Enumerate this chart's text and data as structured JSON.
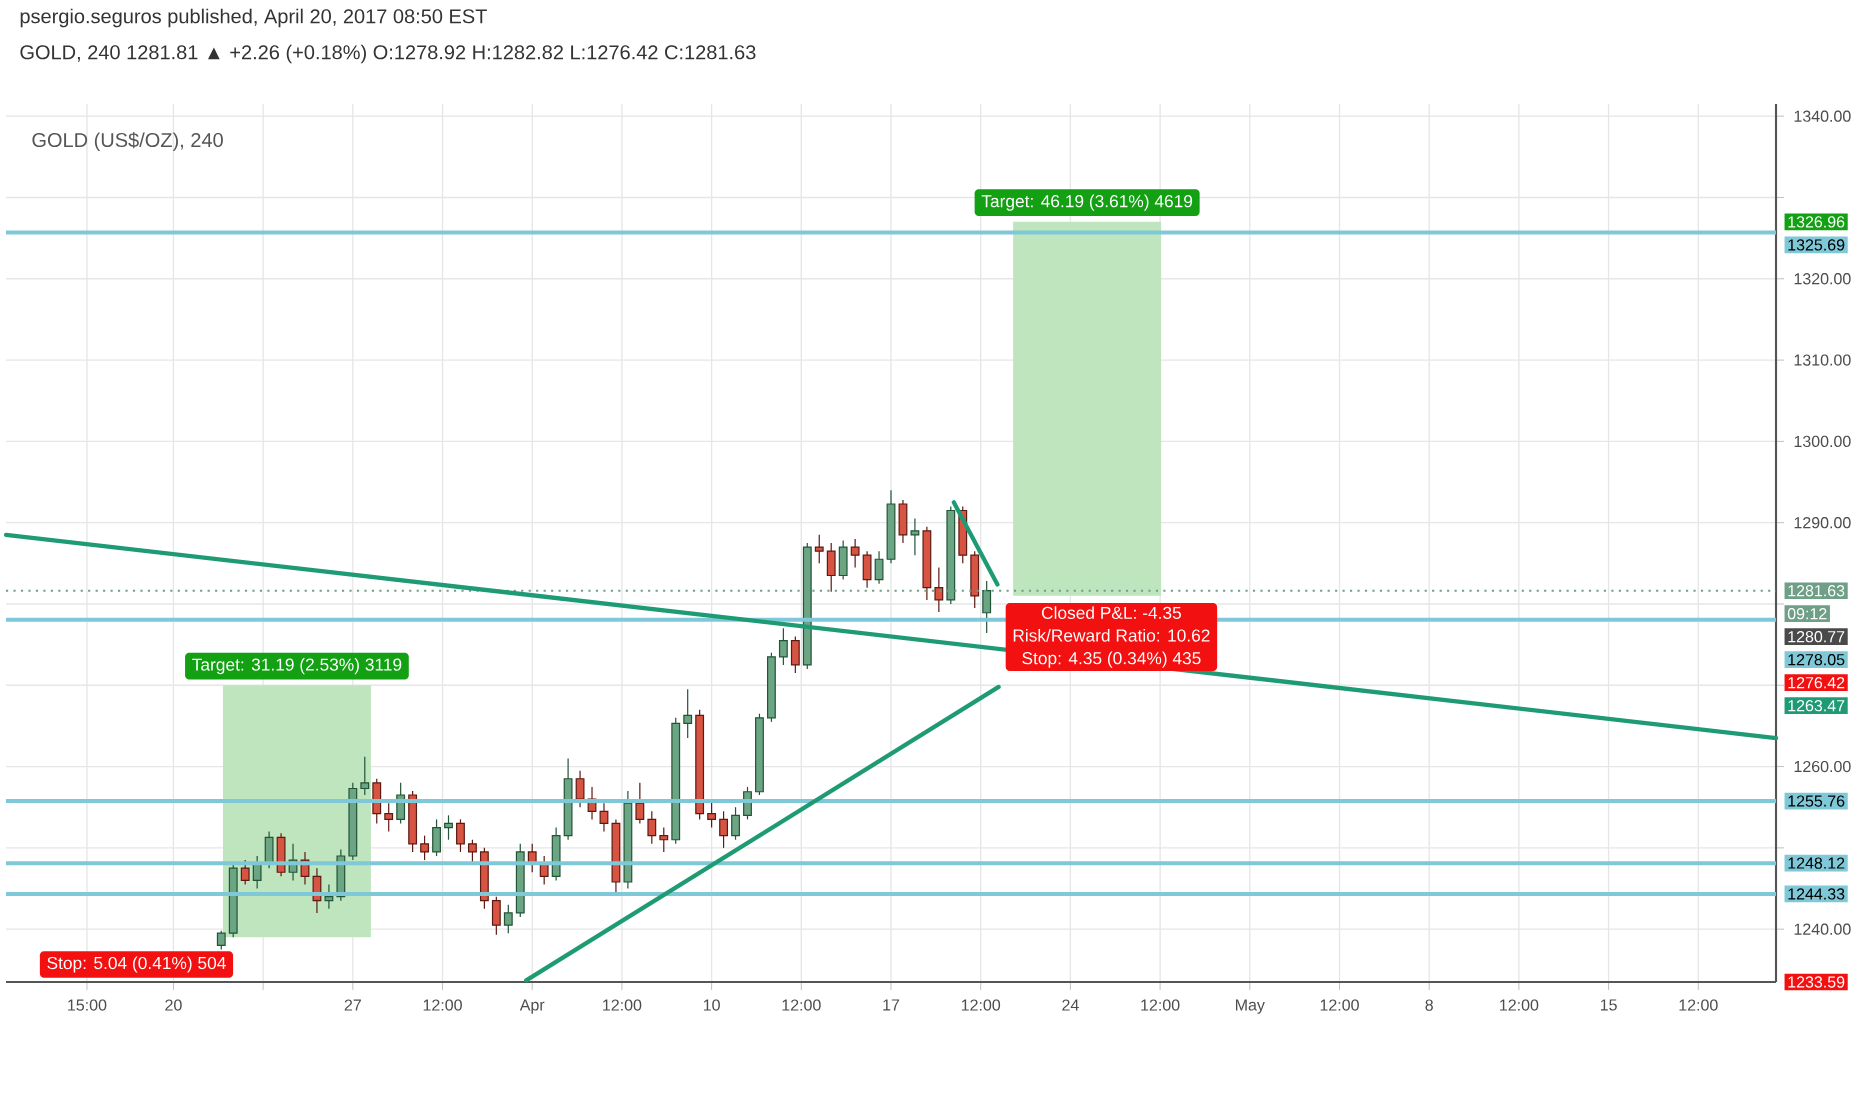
{
  "chart_data": {
    "type": "candlestick",
    "title": "GOLD (US$/OZ), 240",
    "subtitle": "GOLD, 240 1281.81 ▲ +2.26 (+0.18%) O:1278.92 H:1282.82 L:1276.42 C:1281.63",
    "xlim": [
      "2017-03-13T11:12",
      "2017-05-21T12:48"
    ],
    "ylim": [
      1233.5,
      1341.5
    ],
    "xticks": [
      {
        "value": "2017-03-16T15:00",
        "label": "15:00"
      },
      {
        "value": "2017-03-20",
        "label": "20"
      },
      {
        "value": "2017-03-23T12:00",
        "label": null
      },
      {
        "value": "2017-03-27",
        "label": "27"
      },
      {
        "value": "2017-03-30T12:00",
        "label": "12:00"
      },
      {
        "value": "2017-04-03",
        "label": "Apr"
      },
      {
        "value": "2017-04-06T12:00",
        "label": "12:00"
      },
      {
        "value": "2017-04-10",
        "label": "10"
      },
      {
        "value": "2017-04-13T12:00",
        "label": "12:00"
      },
      {
        "value": "2017-04-17",
        "label": "17"
      },
      {
        "value": "2017-04-20T12:00",
        "label": "12:00"
      },
      {
        "value": "2017-04-24",
        "label": "24"
      },
      {
        "value": "2017-04-27T12:00",
        "label": "12:00"
      },
      {
        "value": "2017-05-01",
        "label": "May"
      },
      {
        "value": "2017-05-04T12:00",
        "label": "12:00"
      },
      {
        "value": "2017-05-08",
        "label": "8"
      },
      {
        "value": "2017-05-11T12:00",
        "label": "12:00"
      },
      {
        "value": "2017-05-15",
        "label": "15"
      },
      {
        "value": "2017-05-18T12:00",
        "label": "12:00"
      }
    ],
    "yticks": [
      {
        "value": 1240,
        "label": "1240.00"
      },
      {
        "value": 1250,
        "label": null
      },
      {
        "value": 1260,
        "label": "1260.00"
      },
      {
        "value": 1270,
        "label": null
      },
      {
        "value": 1280,
        "label": null
      },
      {
        "value": 1290,
        "label": "1290.00"
      },
      {
        "value": 1300,
        "label": "1300.00"
      },
      {
        "value": 1310,
        "label": "1310.00"
      },
      {
        "value": 1320,
        "label": "1320.00"
      },
      {
        "value": 1330,
        "label": null
      },
      {
        "value": 1340,
        "label": "1340.00"
      }
    ],
    "grid": true,
    "series": [
      {
        "type": "bar",
        "color": "#bfe5bf",
        "x": [
          "2017-03-24T19:39",
          "2017-04-24T15:40"
        ],
        "base": [
          1239,
          1281
        ],
        "values": [
          31,
          46
        ]
      },
      {
        "x": [
          "2017-03-21T20:48",
          "2017-03-22T08:00",
          "2017-03-22T19:12",
          "2017-03-23T06:24",
          "2017-03-23T17:36",
          "2017-03-24T04:48",
          "2017-03-24T16:00",
          "2017-03-25T03:12",
          "2017-03-25T14:24",
          "2017-03-26T01:36",
          "2017-03-26T12:48",
          "2017-03-27T00:00",
          "2017-03-27T11:12",
          "2017-03-27T22:24",
          "2017-03-28T09:36",
          "2017-03-28T20:48",
          "2017-03-29T08:00",
          "2017-03-29T19:12",
          "2017-03-30T06:24",
          "2017-03-30T17:36",
          "2017-03-31T04:48",
          "2017-03-31T16:00",
          "2017-04-01T03:12",
          "2017-04-01T14:24",
          "2017-04-02T01:36",
          "2017-04-02T12:48",
          "2017-04-03T00:00",
          "2017-04-03T11:12",
          "2017-04-03T22:24",
          "2017-04-04T09:36",
          "2017-04-04T20:48",
          "2017-04-05T08:00",
          "2017-04-05T19:12",
          "2017-04-06T06:24",
          "2017-04-06T17:36",
          "2017-04-07T04:48",
          "2017-04-07T16:00",
          "2017-04-08T03:12",
          "2017-04-08T14:24",
          "2017-04-09T01:36",
          "2017-04-09T12:48",
          "2017-04-10T00:00",
          "2017-04-10T11:12",
          "2017-04-10T22:24",
          "2017-04-11T09:36",
          "2017-04-11T20:48",
          "2017-04-12T08:00",
          "2017-04-12T19:12",
          "2017-04-13T06:24",
          "2017-04-13T17:36",
          "2017-04-14T04:48",
          "2017-04-14T16:00",
          "2017-04-15T03:12",
          "2017-04-15T14:24",
          "2017-04-16T01:36",
          "2017-04-16T12:48",
          "2017-04-17T00:00",
          "2017-04-17T11:12",
          "2017-04-17T22:24",
          "2017-04-18T09:36",
          "2017-04-18T20:48",
          "2017-04-19T08:00",
          "2017-04-19T19:12",
          "2017-04-20T06:24",
          "2017-04-20T17:36"
        ],
        "ohlc": [
          [
            1238.0,
            1239.8,
            1237.5,
            1239.5
          ],
          [
            1239.5,
            1248.3,
            1239.0,
            1247.5
          ],
          [
            1247.5,
            1248.5,
            1245.5,
            1246.0
          ],
          [
            1246.0,
            1249.0,
            1245.0,
            1248.0
          ],
          [
            1248.0,
            1252.0,
            1247.5,
            1251.3
          ],
          [
            1251.3,
            1251.8,
            1246.5,
            1247.0
          ],
          [
            1247.0,
            1250.5,
            1246.0,
            1248.5
          ],
          [
            1248.5,
            1249.5,
            1245.5,
            1246.5
          ],
          [
            1246.5,
            1247.5,
            1242.0,
            1243.5
          ],
          [
            1243.5,
            1245.5,
            1242.5,
            1244.0
          ],
          [
            1244.0,
            1249.8,
            1243.5,
            1249.0
          ],
          [
            1249.0,
            1258.0,
            1248.5,
            1257.3
          ],
          [
            1257.3,
            1261.2,
            1256.5,
            1258.0
          ],
          [
            1258.0,
            1258.5,
            1253.0,
            1254.2
          ],
          [
            1254.2,
            1255.5,
            1252.0,
            1253.5
          ],
          [
            1253.5,
            1258.0,
            1253.0,
            1256.5
          ],
          [
            1256.5,
            1257.0,
            1249.5,
            1250.5
          ],
          [
            1250.5,
            1251.5,
            1248.5,
            1249.5
          ],
          [
            1249.5,
            1253.5,
            1249.0,
            1252.5
          ],
          [
            1252.5,
            1254.0,
            1251.0,
            1253.0
          ],
          [
            1253.0,
            1253.5,
            1249.5,
            1250.5
          ],
          [
            1250.5,
            1251.0,
            1248.0,
            1249.5
          ],
          [
            1249.5,
            1250.0,
            1242.5,
            1243.5
          ],
          [
            1243.5,
            1244.0,
            1239.3,
            1240.5
          ],
          [
            1240.5,
            1243.0,
            1239.5,
            1242.0
          ],
          [
            1242.0,
            1250.5,
            1241.5,
            1249.5
          ],
          [
            1249.5,
            1250.5,
            1247.0,
            1248.0
          ],
          [
            1248.0,
            1249.0,
            1245.5,
            1246.5
          ],
          [
            1246.5,
            1252.5,
            1246.0,
            1251.5
          ],
          [
            1251.5,
            1261.0,
            1251.0,
            1258.5
          ],
          [
            1258.5,
            1259.5,
            1255.0,
            1256.0
          ],
          [
            1256.0,
            1257.5,
            1253.5,
            1254.5
          ],
          [
            1254.5,
            1255.5,
            1252.0,
            1253.0
          ],
          [
            1253.0,
            1253.5,
            1244.5,
            1245.8
          ],
          [
            1245.8,
            1257.0,
            1245.0,
            1255.5
          ],
          [
            1255.5,
            1258.0,
            1253.0,
            1253.5
          ],
          [
            1253.5,
            1254.5,
            1250.5,
            1251.5
          ],
          [
            1251.5,
            1252.5,
            1249.5,
            1251.0
          ],
          [
            1251.0,
            1266.0,
            1250.5,
            1265.3
          ],
          [
            1265.3,
            1269.5,
            1263.5,
            1266.3
          ],
          [
            1266.3,
            1267.0,
            1253.5,
            1254.2
          ],
          [
            1254.2,
            1256.0,
            1252.5,
            1253.5
          ],
          [
            1253.5,
            1254.5,
            1250.0,
            1251.5
          ],
          [
            1251.5,
            1255.0,
            1251.0,
            1254.0
          ],
          [
            1254.0,
            1257.5,
            1253.5,
            1256.9
          ],
          [
            1256.9,
            1266.5,
            1256.5,
            1266.0
          ],
          [
            1266.0,
            1274.0,
            1265.5,
            1273.5
          ],
          [
            1273.5,
            1277.0,
            1272.5,
            1275.5
          ],
          [
            1275.5,
            1276.0,
            1271.5,
            1272.5
          ],
          [
            1272.5,
            1287.5,
            1272.0,
            1287.0
          ],
          [
            1287.0,
            1288.5,
            1285.0,
            1286.5
          ],
          [
            1286.5,
            1287.5,
            1281.5,
            1283.5
          ],
          [
            1283.5,
            1287.8,
            1283.0,
            1287.0
          ],
          [
            1287.0,
            1288.0,
            1284.5,
            1286.0
          ],
          [
            1286.0,
            1286.5,
            1282.0,
            1283.0
          ],
          [
            1283.0,
            1286.5,
            1282.5,
            1285.5
          ],
          [
            1285.5,
            1294.0,
            1285.0,
            1292.3
          ],
          [
            1292.3,
            1292.8,
            1287.5,
            1288.5
          ],
          [
            1288.5,
            1290.5,
            1286.0,
            1289.0
          ],
          [
            1289.0,
            1289.5,
            1280.5,
            1282.0
          ],
          [
            1282.0,
            1284.5,
            1279.0,
            1280.5
          ],
          [
            1280.5,
            1292.0,
            1280.0,
            1291.5
          ],
          [
            1291.5,
            1292.0,
            1285.0,
            1286.0
          ],
          [
            1286.0,
            1286.5,
            1279.5,
            1281.0
          ],
          [
            1278.92,
            1282.82,
            1276.42,
            1281.63
          ]
        ]
      },
      {
        "type": "line",
        "color": "#1e9b74",
        "x": [
          "2017-03-13T11:12",
          "2017-05-21T12:48"
        ],
        "values": [
          1288.5,
          1263.5
        ]
      },
      {
        "type": "line",
        "color": "#1e9b74",
        "x": [
          "2017-04-02T18:24",
          "2017-04-21T04:48"
        ],
        "values": [
          1233.7,
          1269.8
        ]
      },
      {
        "type": "line",
        "color": "#1e9b74",
        "x": [
          "2017-04-19T10:48",
          "2017-04-21T03:40"
        ],
        "values": [
          1292.5,
          1282.4
        ]
      }
    ],
    "ref_lines": [
      {
        "axis": "y",
        "value": 1325.69,
        "color": "#7ec8d8"
      },
      {
        "axis": "y",
        "value": 1281.63,
        "color": "#6f9f86",
        "line_style": "dotted"
      },
      {
        "axis": "y",
        "value": 1278.05,
        "color": "#7ec8d8"
      },
      {
        "axis": "y",
        "value": 1255.76,
        "color": "#7ec8d8"
      },
      {
        "axis": "y",
        "value": 1248.12,
        "color": "#7ec8d8"
      },
      {
        "axis": "y",
        "value": 1244.33,
        "color": "#7ec8d8"
      }
    ],
    "annotations": [
      "psergio.seguros published, April 20, 2017 08:50 EST",
      "Target: 46.19 (3.61%) 4619",
      "Closed P&L: -4.35",
      "Risk/Reward Ratio: 10.62",
      "Stop: 4.35 (0.34%) 435",
      "Target: 31.19 (2.53%) 3119",
      "Stop: 5.04 (0.41%) 504",
      "1326.96",
      "1325.69",
      "1281.63",
      "09:12",
      "1280.77",
      "1278.05",
      "1276.42",
      "1263.47",
      "1255.76",
      "1248.12",
      "1244.33",
      "1233.59"
    ]
  }
}
